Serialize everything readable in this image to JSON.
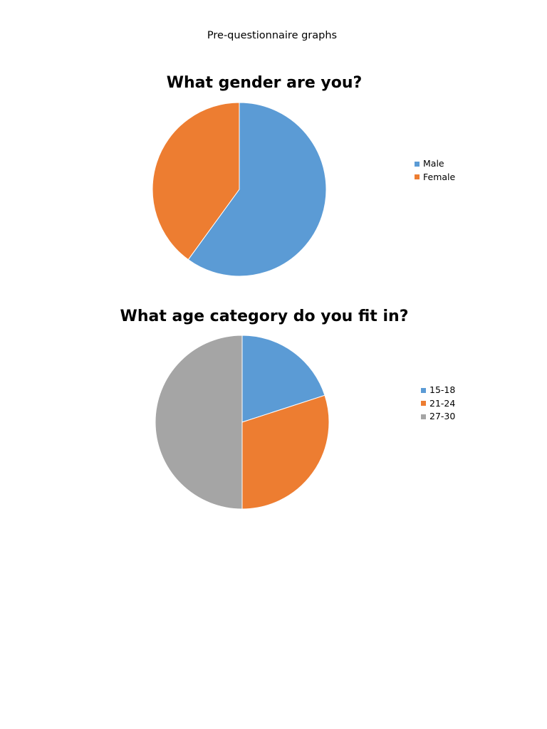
{
  "page": {
    "heading": "Pre-questionnaire graphs"
  },
  "colors": {
    "blue": "#5b9bd5",
    "orange": "#ed7d31",
    "gray": "#a5a5a5"
  },
  "chart_data": [
    {
      "type": "pie",
      "title": "What gender are you?",
      "categories": [
        "Male",
        "Female"
      ],
      "values": [
        60,
        40
      ],
      "colors": [
        "#5b9bd5",
        "#ed7d31"
      ],
      "legend": "right"
    },
    {
      "type": "pie",
      "title": "What age category do you fit in?",
      "categories": [
        "15-18",
        "21-24",
        "27-30"
      ],
      "values": [
        20,
        30,
        50
      ],
      "colors": [
        "#5b9bd5",
        "#ed7d31",
        "#a5a5a5"
      ],
      "legend": "right"
    }
  ]
}
